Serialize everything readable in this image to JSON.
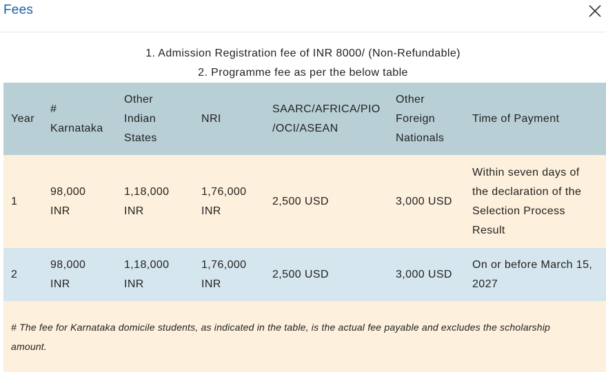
{
  "modal": {
    "title": "Fees",
    "close_label": "×"
  },
  "notes": [
    "1. Admission Registration fee of INR 8000/ (Non-Refundable)",
    "2. Programme fee as per the below table"
  ],
  "table": {
    "headers": {
      "year": "Year",
      "karnataka": [
        "#",
        "Karnataka"
      ],
      "other_states": [
        "Other",
        "Indian",
        "States"
      ],
      "nri": "NRI",
      "saarc": [
        "SAARC/AFRICA/PIO",
        "/OCI/ASEAN"
      ],
      "foreign": [
        "Other",
        "Foreign",
        "Nationals"
      ],
      "time": "Time of Payment"
    },
    "rows": [
      {
        "year": "1",
        "karnataka": [
          "98,000",
          "INR"
        ],
        "other_states": [
          "1,18,000",
          "INR"
        ],
        "nri": [
          "1,76,000",
          "INR"
        ],
        "saarc": "2,500 USD",
        "foreign": "3,000 USD",
        "time": [
          "Within seven days of",
          "the declaration of the",
          "Selection Process",
          "Result"
        ]
      },
      {
        "year": "2",
        "karnataka": [
          "98,000",
          "INR"
        ],
        "other_states": [
          "1,18,000",
          "INR"
        ],
        "nri": [
          "1,76,000",
          "INR"
        ],
        "saarc": "2,500 USD",
        "foreign": "3,000 USD",
        "time": [
          "On or before March 15,",
          "2027"
        ]
      }
    ],
    "footnote": [
      "# The fee for Karnataka domicile students, as indicated in the table, is the actual fee payable and excludes the scholarship",
      "amount."
    ]
  },
  "colors": {
    "title": "#1f5fa6",
    "header_bg": "#b8cfd6",
    "row_odd_bg": "#fdf0dc",
    "row_even_bg": "#d6e6ee"
  },
  "icons": {
    "close": "close-icon"
  }
}
